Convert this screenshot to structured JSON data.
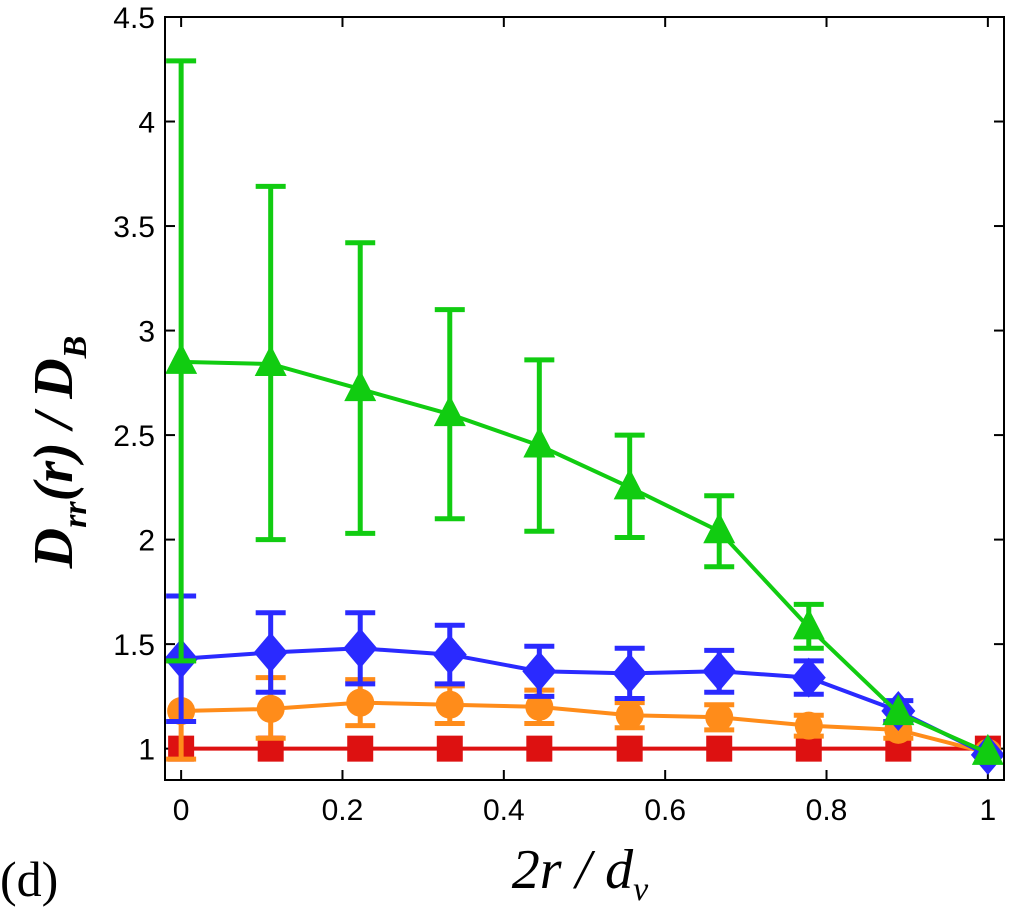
{
  "panel_label": "(d)",
  "chart_data": {
    "type": "line",
    "title": "",
    "xlabel": {
      "main": "2r / d",
      "sub": "v"
    },
    "ylabel": {
      "part1": "D",
      "sub1": "rr",
      "part2": "(r) / D",
      "sub2": "B"
    },
    "xlim": [
      -0.02,
      1.02
    ],
    "ylim": [
      0.85,
      4.5
    ],
    "xticks": [
      0,
      0.2,
      0.4,
      0.6,
      0.8,
      1
    ],
    "xtick_labels": [
      "0",
      "0.2",
      "0.4",
      "0.6",
      "0.8",
      "1"
    ],
    "yticks": [
      1,
      1.5,
      2,
      2.5,
      3,
      3.5,
      4,
      4.5
    ],
    "ytick_labels": [
      "1",
      "1.5",
      "2",
      "2.5",
      "3",
      "3.5",
      "4",
      "4.5"
    ],
    "x": [
      0,
      0.111,
      0.222,
      0.333,
      0.444,
      0.556,
      0.667,
      0.778,
      0.889,
      1.0
    ],
    "series": [
      {
        "name": "green",
        "color": "#11cc11",
        "marker": "triangle",
        "values": [
          2.85,
          2.84,
          2.72,
          2.6,
          2.45,
          2.25,
          2.04,
          1.58,
          1.17,
          0.98
        ],
        "err_low": [
          1.42,
          2.0,
          2.03,
          2.1,
          2.04,
          2.01,
          1.87,
          1.48,
          null,
          null
        ],
        "err_high": [
          4.29,
          3.69,
          3.42,
          3.1,
          2.86,
          2.5,
          2.21,
          1.69,
          null,
          null
        ]
      },
      {
        "name": "blue",
        "color": "#2a2aff",
        "marker": "diamond",
        "values": [
          1.43,
          1.46,
          1.48,
          1.45,
          1.37,
          1.36,
          1.37,
          1.34,
          1.18,
          0.97
        ],
        "err_low": [
          1.13,
          1.27,
          1.31,
          1.31,
          1.25,
          1.24,
          1.27,
          1.26,
          1.13,
          null
        ],
        "err_high": [
          1.73,
          1.65,
          1.65,
          1.59,
          1.49,
          1.48,
          1.47,
          1.42,
          1.23,
          null
        ]
      },
      {
        "name": "orange",
        "color": "#ff8c1a",
        "marker": "circle",
        "values": [
          1.18,
          1.19,
          1.22,
          1.21,
          1.2,
          1.16,
          1.15,
          1.11,
          1.09,
          0.98
        ],
        "err_low": [
          0.95,
          1.05,
          1.11,
          1.12,
          1.12,
          1.1,
          1.09,
          1.06,
          1.05,
          null
        ],
        "err_high": [
          1.42,
          1.34,
          1.33,
          1.3,
          1.28,
          1.22,
          1.21,
          1.16,
          1.13,
          null
        ]
      },
      {
        "name": "red",
        "color": "#dd1111",
        "marker": "square",
        "values": [
          1.0,
          1.0,
          1.0,
          1.0,
          1.0,
          1.0,
          1.0,
          1.0,
          1.0,
          1.0
        ],
        "err_low": [
          null,
          null,
          null,
          null,
          null,
          null,
          null,
          null,
          null,
          null
        ],
        "err_high": [
          null,
          null,
          null,
          null,
          null,
          null,
          null,
          null,
          null,
          null
        ]
      }
    ]
  }
}
